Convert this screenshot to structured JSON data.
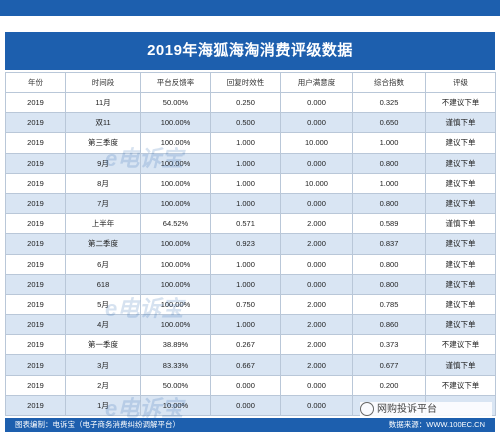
{
  "title": "2019年海狐海淘消费评级数据",
  "columns": [
    "年份",
    "时间段",
    "平台反馈率",
    "回复时效性",
    "用户满意度",
    "综合指数",
    "评级"
  ],
  "rows": [
    [
      "2019",
      "11月",
      "50.00%",
      "0.250",
      "0.000",
      "0.325",
      "不建议下单"
    ],
    [
      "2019",
      "双11",
      "100.00%",
      "0.500",
      "0.000",
      "0.650",
      "谨慎下单"
    ],
    [
      "2019",
      "第三季度",
      "100.00%",
      "1.000",
      "10.000",
      "1.000",
      "建议下单"
    ],
    [
      "2019",
      "9月",
      "100.00%",
      "1.000",
      "0.000",
      "0.800",
      "建议下单"
    ],
    [
      "2019",
      "8月",
      "100.00%",
      "1.000",
      "10.000",
      "1.000",
      "建议下单"
    ],
    [
      "2019",
      "7月",
      "100.00%",
      "1.000",
      "0.000",
      "0.800",
      "建议下单"
    ],
    [
      "2019",
      "上半年",
      "64.52%",
      "0.571",
      "2.000",
      "0.589",
      "谨慎下单"
    ],
    [
      "2019",
      "第二季度",
      "100.00%",
      "0.923",
      "2.000",
      "0.837",
      "建议下单"
    ],
    [
      "2019",
      "6月",
      "100.00%",
      "1.000",
      "0.000",
      "0.800",
      "建议下单"
    ],
    [
      "2019",
      "618",
      "100.00%",
      "1.000",
      "0.000",
      "0.800",
      "建议下单"
    ],
    [
      "2019",
      "5月",
      "100.00%",
      "0.750",
      "2.000",
      "0.785",
      "建议下单"
    ],
    [
      "2019",
      "4月",
      "100.00%",
      "1.000",
      "2.000",
      "0.860",
      "建议下单"
    ],
    [
      "2019",
      "第一季度",
      "38.89%",
      "0.267",
      "2.000",
      "0.373",
      "不建议下单"
    ],
    [
      "2019",
      "3月",
      "83.33%",
      "0.667",
      "2.000",
      "0.677",
      "谨慎下单"
    ],
    [
      "2019",
      "2月",
      "50.00%",
      "0.000",
      "0.000",
      "0.200",
      "不建议下单"
    ],
    [
      "2019",
      "1月",
      "10.00%",
      "0.000",
      "0.000",
      "",
      ""
    ]
  ],
  "footer": {
    "left": "图表编制：电诉宝（电子商务消费纠纷调解平台）",
    "right": "数据来源：WWW.100EC.CN"
  },
  "watermark": "电诉宝",
  "social_text": "网购投诉平台",
  "colors": {
    "header_blue": "#1d5fae",
    "stripe": "#d9e5f3"
  }
}
